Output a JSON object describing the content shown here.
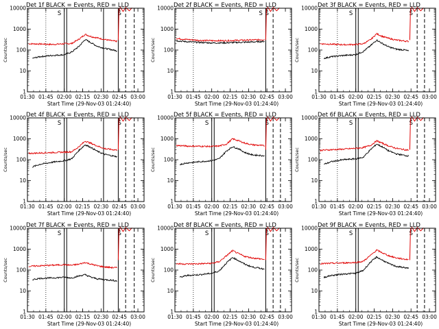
{
  "chart_data": {
    "type": "line",
    "rows": 3,
    "cols": 3,
    "y_scale": "log",
    "ylim": [
      1,
      10000
    ],
    "xlim": [
      "01:30",
      "03:05"
    ],
    "y_ticks": [
      "1",
      "10",
      "100",
      "1000",
      "10000"
    ],
    "x_ticks": [
      "01:30",
      "01:45",
      "02:00",
      "02:15",
      "02:30",
      "02:45",
      "03:00"
    ],
    "ylabel": "Counts/sec",
    "xlabel": "Start Time (29-Nov-03 01:24:40)",
    "marker": "S",
    "colors": {
      "events": "#000000",
      "lld": "#e00000"
    },
    "panels": [
      {
        "title": "Det 1f BLACK = Events, RED = LLD",
        "dotted": "01:45",
        "solid": [
          "02:00",
          "02:02",
          "02:32",
          "02:44"
        ],
        "dashed": [
          "02:50",
          "02:57"
        ],
        "lld": [
          [
            "01:31",
            200
          ],
          [
            "01:40",
            195
          ],
          [
            "01:50",
            185
          ],
          [
            "02:00",
            200
          ],
          [
            "02:06",
            205
          ],
          [
            "02:12",
            330
          ],
          [
            "02:17",
            560
          ],
          [
            "02:22",
            440
          ],
          [
            "02:27",
            380
          ],
          [
            "02:33",
            320
          ],
          [
            "02:40",
            270
          ],
          [
            "02:43",
            260
          ]
        ],
        "events": [
          [
            "01:34",
            40
          ],
          [
            "01:40",
            48
          ],
          [
            "01:50",
            55
          ],
          [
            "02:00",
            60
          ],
          [
            "02:06",
            80
          ],
          [
            "02:12",
            150
          ],
          [
            "02:17",
            320
          ],
          [
            "02:22",
            220
          ],
          [
            "02:27",
            150
          ],
          [
            "02:33",
            120
          ],
          [
            "02:40",
            100
          ],
          [
            "02:43",
            90
          ]
        ]
      },
      {
        "title": "Det 2f BLACK = Events, RED = LLD",
        "dotted": "01:45",
        "solid": [
          "02:44"
        ],
        "dashed": [
          "02:50"
        ],
        "lld": [
          [
            "01:31",
            360
          ],
          [
            "01:40",
            320
          ],
          [
            "01:50",
            290
          ],
          [
            "02:00",
            280
          ],
          [
            "02:10",
            280
          ],
          [
            "02:20",
            290
          ],
          [
            "02:30",
            300
          ],
          [
            "02:38",
            310
          ],
          [
            "02:43",
            320
          ]
        ],
        "events": [
          [
            "01:31",
            280
          ],
          [
            "01:40",
            250
          ],
          [
            "01:50",
            230
          ],
          [
            "02:00",
            220
          ],
          [
            "02:10",
            220
          ],
          [
            "02:20",
            230
          ],
          [
            "02:30",
            240
          ],
          [
            "02:38",
            250
          ],
          [
            "02:43",
            260
          ]
        ]
      },
      {
        "title": "Det 3f BLACK = Events, RED = LLD",
        "dotted": "01:45",
        "solid": [
          "02:00",
          "02:02"
        ],
        "dashed": [
          "02:50",
          "02:56"
        ],
        "lld": [
          [
            "01:31",
            200
          ],
          [
            "01:40",
            190
          ],
          [
            "01:50",
            180
          ],
          [
            "02:00",
            185
          ],
          [
            "02:06",
            200
          ],
          [
            "02:12",
            310
          ],
          [
            "02:17",
            600
          ],
          [
            "02:22",
            440
          ],
          [
            "02:27",
            360
          ],
          [
            "02:33",
            300
          ],
          [
            "02:40",
            270
          ],
          [
            "02:43",
            260
          ]
        ],
        "events": [
          [
            "01:34",
            40
          ],
          [
            "01:40",
            48
          ],
          [
            "01:50",
            55
          ],
          [
            "02:00",
            60
          ],
          [
            "02:06",
            85
          ],
          [
            "02:12",
            160
          ],
          [
            "02:17",
            300
          ],
          [
            "02:22",
            200
          ],
          [
            "02:27",
            140
          ],
          [
            "02:33",
            110
          ],
          [
            "02:40",
            100
          ],
          [
            "02:43",
            90
          ]
        ]
      },
      {
        "title": "Det 4f BLACK = Events, RED = LLD",
        "dotted": "01:45",
        "solid": [
          "02:00",
          "02:02",
          "02:32",
          "02:44"
        ],
        "dashed": [
          "02:50",
          "02:57"
        ],
        "lld": [
          [
            "01:31",
            200
          ],
          [
            "01:40",
            210
          ],
          [
            "01:50",
            220
          ],
          [
            "02:00",
            230
          ],
          [
            "02:06",
            240
          ],
          [
            "02:12",
            420
          ],
          [
            "02:17",
            780
          ],
          [
            "02:22",
            600
          ],
          [
            "02:27",
            450
          ],
          [
            "02:33",
            340
          ],
          [
            "02:40",
            300
          ],
          [
            "02:43",
            290
          ]
        ],
        "events": [
          [
            "01:34",
            45
          ],
          [
            "01:40",
            60
          ],
          [
            "01:50",
            75
          ],
          [
            "02:00",
            90
          ],
          [
            "02:06",
            110
          ],
          [
            "02:12",
            280
          ],
          [
            "02:17",
            520
          ],
          [
            "02:22",
            380
          ],
          [
            "02:27",
            250
          ],
          [
            "02:33",
            180
          ],
          [
            "02:40",
            150
          ],
          [
            "02:43",
            140
          ]
        ]
      },
      {
        "title": "Det 5f BLACK = Events, RED = LLD",
        "dotted": "01:45",
        "solid": [
          "02:00",
          "02:02",
          "02:44"
        ],
        "dashed": [
          "02:50",
          "02:56"
        ],
        "lld": [
          [
            "01:31",
            480
          ],
          [
            "01:40",
            450
          ],
          [
            "01:50",
            440
          ],
          [
            "02:00",
            430
          ],
          [
            "02:06",
            450
          ],
          [
            "02:12",
            560
          ],
          [
            "02:17",
            1000
          ],
          [
            "02:22",
            800
          ],
          [
            "02:27",
            620
          ],
          [
            "02:33",
            520
          ],
          [
            "02:40",
            480
          ],
          [
            "02:43",
            460
          ]
        ],
        "events": [
          [
            "01:34",
            60
          ],
          [
            "01:40",
            70
          ],
          [
            "01:50",
            80
          ],
          [
            "02:00",
            90
          ],
          [
            "02:06",
            110
          ],
          [
            "02:12",
            260
          ],
          [
            "02:17",
            420
          ],
          [
            "02:22",
            330
          ],
          [
            "02:27",
            220
          ],
          [
            "02:33",
            170
          ],
          [
            "02:40",
            160
          ],
          [
            "02:43",
            150
          ]
        ]
      },
      {
        "title": "Det 6f BLACK = Events, RED = LLD",
        "dotted": "01:45",
        "solid": [
          "02:00",
          "02:02"
        ],
        "dashed": [
          "02:50",
          "02:56"
        ],
        "lld": [
          [
            "01:31",
            280
          ],
          [
            "01:40",
            300
          ],
          [
            "01:50",
            320
          ],
          [
            "02:00",
            350
          ],
          [
            "02:06",
            380
          ],
          [
            "02:12",
            480
          ],
          [
            "02:17",
            800
          ],
          [
            "02:22",
            600
          ],
          [
            "02:27",
            450
          ],
          [
            "02:33",
            350
          ],
          [
            "02:40",
            300
          ],
          [
            "02:43",
            290
          ]
        ],
        "events": [
          [
            "01:34",
            60
          ],
          [
            "01:40",
            80
          ],
          [
            "01:50",
            100
          ],
          [
            "02:00",
            110
          ],
          [
            "02:06",
            130
          ],
          [
            "02:12",
            300
          ],
          [
            "02:17",
            560
          ],
          [
            "02:22",
            400
          ],
          [
            "02:27",
            260
          ],
          [
            "02:33",
            190
          ],
          [
            "02:40",
            160
          ],
          [
            "02:43",
            150
          ]
        ]
      },
      {
        "title": "Det 7f BLACK = Events, RED = LLD",
        "dotted": "01:45",
        "solid": [
          "02:00",
          "02:02",
          "02:32",
          "02:44"
        ],
        "dashed": [
          "02:50",
          "02:57"
        ],
        "lld": [
          [
            "01:31",
            150
          ],
          [
            "01:40",
            160
          ],
          [
            "01:50",
            170
          ],
          [
            "02:00",
            180
          ],
          [
            "02:06",
            170
          ],
          [
            "02:12",
            190
          ],
          [
            "02:17",
            230
          ],
          [
            "02:22",
            190
          ],
          [
            "02:27",
            160
          ],
          [
            "02:33",
            140
          ],
          [
            "02:40",
            130
          ],
          [
            "02:43",
            130
          ]
        ],
        "events": [
          [
            "01:34",
            35
          ],
          [
            "01:40",
            40
          ],
          [
            "01:50",
            42
          ],
          [
            "02:00",
            45
          ],
          [
            "02:06",
            42
          ],
          [
            "02:12",
            52
          ],
          [
            "02:17",
            60
          ],
          [
            "02:22",
            45
          ],
          [
            "02:27",
            38
          ],
          [
            "02:33",
            35
          ],
          [
            "02:40",
            32
          ],
          [
            "02:43",
            30
          ]
        ]
      },
      {
        "title": "Det 8f BLACK = Events, RED = LLD",
        "dotted": "01:45",
        "solid": [
          "02:00",
          "02:02",
          "02:44"
        ],
        "dashed": [
          "02:50",
          "02:56"
        ],
        "lld": [
          [
            "01:31",
            200
          ],
          [
            "01:40",
            195
          ],
          [
            "01:50",
            200
          ],
          [
            "02:00",
            210
          ],
          [
            "02:06",
            250
          ],
          [
            "02:12",
            480
          ],
          [
            "02:17",
            850
          ],
          [
            "02:22",
            600
          ],
          [
            "02:27",
            450
          ],
          [
            "02:33",
            380
          ],
          [
            "02:40",
            340
          ],
          [
            "02:43",
            320
          ]
        ],
        "events": [
          [
            "01:34",
            45
          ],
          [
            "01:40",
            55
          ],
          [
            "01:50",
            60
          ],
          [
            "02:00",
            70
          ],
          [
            "02:06",
            90
          ],
          [
            "02:12",
            220
          ],
          [
            "02:17",
            400
          ],
          [
            "02:22",
            280
          ],
          [
            "02:27",
            190
          ],
          [
            "02:33",
            140
          ],
          [
            "02:40",
            120
          ],
          [
            "02:43",
            110
          ]
        ]
      },
      {
        "title": "Det 9f BLACK = Events, RED = LLD",
        "dotted": "01:45",
        "solid": [
          "02:00",
          "02:02"
        ],
        "dashed": [
          "02:50",
          "02:56"
        ],
        "lld": [
          [
            "01:31",
            200
          ],
          [
            "01:40",
            210
          ],
          [
            "01:50",
            220
          ],
          [
            "02:00",
            230
          ],
          [
            "02:06",
            260
          ],
          [
            "02:12",
            500
          ],
          [
            "02:17",
            900
          ],
          [
            "02:22",
            650
          ],
          [
            "02:27",
            480
          ],
          [
            "02:33",
            380
          ],
          [
            "02:40",
            330
          ],
          [
            "02:43",
            320
          ]
        ],
        "events": [
          [
            "01:34",
            45
          ],
          [
            "01:40",
            55
          ],
          [
            "01:50",
            65
          ],
          [
            "02:00",
            70
          ],
          [
            "02:06",
            95
          ],
          [
            "02:12",
            240
          ],
          [
            "02:17",
            420
          ],
          [
            "02:22",
            290
          ],
          [
            "02:27",
            200
          ],
          [
            "02:33",
            150
          ],
          [
            "02:40",
            130
          ],
          [
            "02:43",
            120
          ]
        ]
      }
    ]
  }
}
